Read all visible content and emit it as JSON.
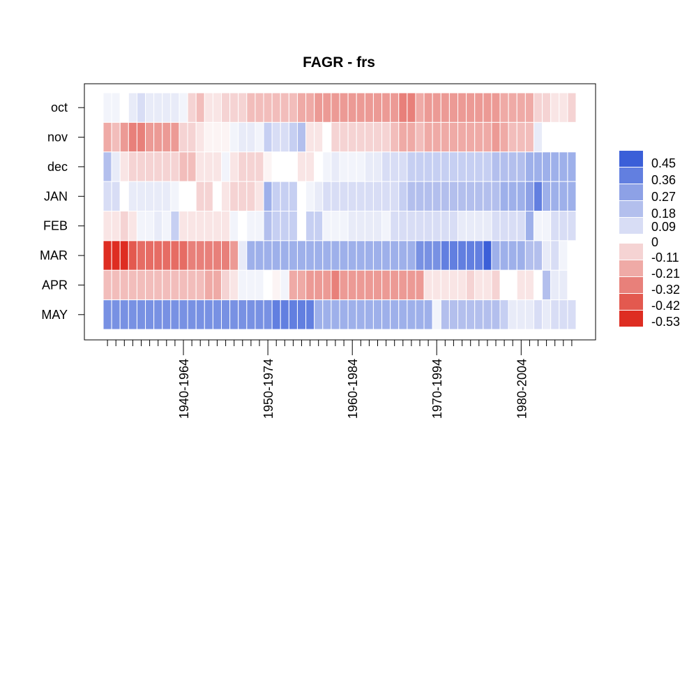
{
  "chart_data": {
    "type": "heatmap",
    "title": "FAGR - frs",
    "xlabel": "",
    "ylabel": "",
    "rows": [
      "oct",
      "nov",
      "dec",
      "JAN",
      "FEB",
      "MAR",
      "APR",
      "MAY"
    ],
    "x_tick_labels": [
      {
        "index": 9,
        "label": "1940-1964"
      },
      {
        "index": 19,
        "label": "1950-1974"
      },
      {
        "index": 29,
        "label": "1960-1984"
      },
      {
        "index": 39,
        "label": "1970-1994"
      },
      {
        "index": 49,
        "label": "1980-2004"
      }
    ],
    "n_columns": 56,
    "legend": {
      "placement": "right",
      "labels": [
        "0.45",
        "0.36",
        "0.27",
        "0.18",
        "0.09",
        "0",
        "-0.11",
        "-0.21",
        "-0.32",
        "-0.42",
        "-0.53"
      ],
      "colors": [
        "#3b5fd8",
        "#627fe0",
        "#8da1e6",
        "#b3bfed",
        "#d8ddf5",
        "#f5d3d3",
        "#efaaa6",
        "#e8807a",
        "#e3594f",
        "#de2d22"
      ]
    },
    "values": [
      [
        0.02,
        0.02,
        0.0,
        0.05,
        0.07,
        0.05,
        0.05,
        0.05,
        0.05,
        0.02,
        -0.08,
        -0.14,
        -0.06,
        -0.06,
        -0.1,
        -0.1,
        -0.1,
        -0.14,
        -0.14,
        -0.14,
        -0.14,
        -0.14,
        -0.14,
        -0.2,
        -0.2,
        -0.24,
        -0.26,
        -0.26,
        -0.26,
        -0.26,
        -0.26,
        -0.26,
        -0.26,
        -0.26,
        -0.26,
        -0.3,
        -0.3,
        -0.2,
        -0.24,
        -0.24,
        -0.24,
        -0.24,
        -0.24,
        -0.24,
        -0.24,
        -0.26,
        -0.26,
        -0.2,
        -0.2,
        -0.2,
        -0.2,
        -0.1,
        -0.1,
        -0.06,
        -0.06,
        -0.1
      ],
      [
        -0.18,
        -0.14,
        -0.24,
        -0.32,
        -0.28,
        -0.24,
        -0.24,
        -0.24,
        -0.24,
        -0.08,
        -0.08,
        -0.04,
        -0.02,
        -0.02,
        -0.02,
        0.02,
        0.05,
        0.05,
        0.02,
        0.14,
        0.09,
        0.09,
        0.14,
        0.18,
        -0.04,
        -0.04,
        0.0,
        -0.08,
        -0.08,
        -0.08,
        -0.08,
        -0.1,
        -0.1,
        -0.1,
        -0.14,
        -0.2,
        -0.2,
        -0.14,
        -0.2,
        -0.2,
        -0.2,
        -0.2,
        -0.2,
        -0.2,
        -0.2,
        -0.2,
        -0.24,
        -0.2,
        -0.16,
        -0.16,
        -0.16,
        0.05,
        0.0,
        0.0,
        0.0,
        0.0
      ],
      [
        0.16,
        0.05,
        -0.04,
        -0.08,
        -0.1,
        -0.1,
        -0.1,
        -0.1,
        -0.1,
        -0.16,
        -0.16,
        -0.06,
        -0.06,
        -0.04,
        0.02,
        -0.04,
        -0.08,
        -0.08,
        -0.08,
        -0.02,
        0.0,
        0.0,
        0.0,
        -0.04,
        -0.04,
        0.0,
        0.02,
        0.05,
        0.02,
        0.02,
        0.02,
        0.05,
        0.05,
        0.09,
        0.09,
        0.09,
        0.12,
        0.12,
        0.12,
        0.12,
        0.12,
        0.12,
        0.12,
        0.12,
        0.12,
        0.14,
        0.16,
        0.16,
        0.16,
        0.18,
        0.2,
        0.22,
        0.22,
        0.2,
        0.2,
        0.2
      ],
      [
        0.09,
        0.09,
        0.0,
        0.05,
        0.05,
        0.05,
        0.05,
        0.05,
        0.02,
        0.0,
        0.0,
        -0.08,
        -0.08,
        0.0,
        -0.06,
        -0.08,
        -0.08,
        -0.08,
        -0.04,
        0.22,
        0.12,
        0.12,
        0.12,
        0.0,
        0.02,
        0.05,
        0.09,
        0.09,
        0.09,
        0.09,
        0.09,
        0.09,
        0.09,
        0.09,
        0.09,
        0.12,
        0.16,
        0.16,
        0.16,
        0.16,
        0.16,
        0.16,
        0.16,
        0.18,
        0.18,
        0.18,
        0.18,
        0.2,
        0.2,
        0.24,
        0.26,
        0.36,
        0.22,
        0.2,
        0.2,
        0.2
      ],
      [
        -0.06,
        -0.06,
        -0.12,
        -0.04,
        0.02,
        0.02,
        0.05,
        0.02,
        0.12,
        -0.06,
        -0.06,
        -0.06,
        -0.04,
        -0.04,
        -0.04,
        0.02,
        0.0,
        0.02,
        0.02,
        0.18,
        0.12,
        0.12,
        0.12,
        0.0,
        0.12,
        0.12,
        0.02,
        0.02,
        0.02,
        0.05,
        0.05,
        0.05,
        0.05,
        0.02,
        0.09,
        0.09,
        0.09,
        0.07,
        0.07,
        0.07,
        0.07,
        0.07,
        0.05,
        0.05,
        0.05,
        0.05,
        0.09,
        0.09,
        0.09,
        0.09,
        0.22,
        0.02,
        0.02,
        0.09,
        0.09,
        0.09
      ],
      [
        -0.53,
        -0.53,
        -0.48,
        -0.42,
        -0.38,
        -0.38,
        -0.38,
        -0.36,
        -0.36,
        -0.36,
        -0.32,
        -0.32,
        -0.32,
        -0.32,
        -0.28,
        -0.24,
        0.05,
        0.2,
        0.2,
        0.2,
        0.2,
        0.2,
        0.2,
        0.2,
        0.2,
        0.2,
        0.2,
        0.2,
        0.2,
        0.2,
        0.2,
        0.2,
        0.2,
        0.2,
        0.2,
        0.2,
        0.2,
        0.31,
        0.31,
        0.34,
        0.36,
        0.36,
        0.4,
        0.4,
        0.4,
        0.45,
        0.24,
        0.24,
        0.24,
        0.24,
        0.18,
        0.18,
        0.05,
        0.09,
        0.02,
        0.0
      ],
      [
        -0.16,
        -0.16,
        -0.16,
        -0.16,
        -0.16,
        -0.16,
        -0.16,
        -0.16,
        -0.16,
        -0.16,
        -0.16,
        -0.16,
        -0.2,
        -0.2,
        -0.1,
        -0.06,
        0.02,
        0.02,
        0.02,
        0.0,
        -0.02,
        0.02,
        -0.2,
        -0.2,
        -0.24,
        -0.24,
        -0.24,
        -0.28,
        -0.24,
        -0.24,
        -0.24,
        -0.24,
        -0.24,
        -0.24,
        -0.24,
        -0.24,
        -0.24,
        -0.24,
        -0.04,
        -0.06,
        -0.06,
        -0.06,
        -0.06,
        -0.08,
        -0.04,
        -0.04,
        -0.12,
        0.0,
        0.0,
        -0.04,
        -0.04,
        0.0,
        0.18,
        0.05,
        0.05,
        0.0
      ],
      [
        0.3,
        0.3,
        0.3,
        0.3,
        0.3,
        0.3,
        0.3,
        0.3,
        0.3,
        0.3,
        0.3,
        0.3,
        0.3,
        0.3,
        0.3,
        0.3,
        0.3,
        0.3,
        0.3,
        0.3,
        0.4,
        0.4,
        0.4,
        0.4,
        0.4,
        0.24,
        0.24,
        0.24,
        0.24,
        0.24,
        0.24,
        0.24,
        0.24,
        0.24,
        0.24,
        0.24,
        0.24,
        0.24,
        0.24,
        0.02,
        0.18,
        0.18,
        0.18,
        0.18,
        0.18,
        0.18,
        0.18,
        0.12,
        0.05,
        0.05,
        0.05,
        0.07,
        0.05,
        0.09,
        0.09,
        0.09
      ]
    ]
  }
}
